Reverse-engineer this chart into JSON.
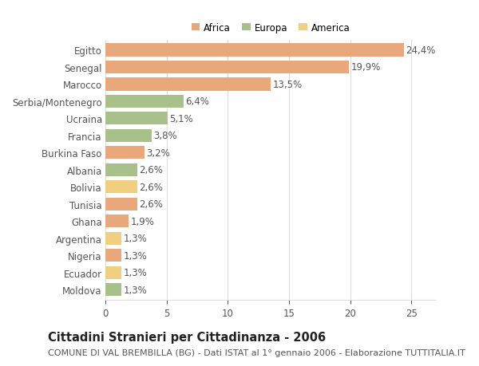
{
  "categories": [
    "Egitto",
    "Senegal",
    "Marocco",
    "Serbia/Montenegro",
    "Ucraina",
    "Francia",
    "Burkina Faso",
    "Albania",
    "Bolivia",
    "Tunisia",
    "Ghana",
    "Argentina",
    "Nigeria",
    "Ecuador",
    "Moldova"
  ],
  "values": [
    24.4,
    19.9,
    13.5,
    6.4,
    5.1,
    3.8,
    3.2,
    2.6,
    2.6,
    2.6,
    1.9,
    1.3,
    1.3,
    1.3,
    1.3
  ],
  "continents": [
    "Africa",
    "Africa",
    "Africa",
    "Europa",
    "Europa",
    "Europa",
    "Africa",
    "Europa",
    "America",
    "Africa",
    "Africa",
    "America",
    "Africa",
    "America",
    "Europa"
  ],
  "colors": {
    "Africa": "#E8A87C",
    "Europa": "#A8C08A",
    "America": "#F0D080"
  },
  "legend_labels": [
    "Africa",
    "Europa",
    "America"
  ],
  "legend_colors": [
    "#E8A87C",
    "#A8C08A",
    "#F0D080"
  ],
  "title": "Cittadini Stranieri per Cittadinanza - 2006",
  "subtitle": "COMUNE DI VAL BREMBILLA (BG) - Dati ISTAT al 1° gennaio 2006 - Elaborazione TUTTITALIA.IT",
  "xlim": [
    0,
    27
  ],
  "xticks": [
    0,
    5,
    10,
    15,
    20,
    25
  ],
  "background_color": "#ffffff",
  "grid_color": "#dddddd",
  "bar_height": 0.75,
  "label_fontsize": 8.5,
  "title_fontsize": 10.5,
  "subtitle_fontsize": 8
}
